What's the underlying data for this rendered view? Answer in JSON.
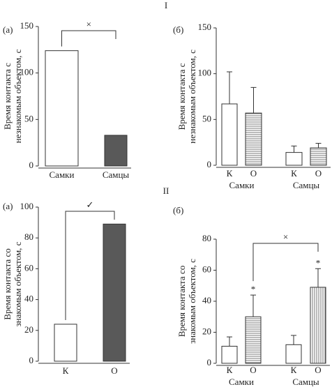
{
  "section_labels": [
    "I",
    "II"
  ],
  "chart_data": [
    {
      "type": "bar",
      "panel": "(а)",
      "ylabel": [
        "Время контакта с",
        "незнакомым объектом, с"
      ],
      "categories": [
        "Самки",
        "Самцы"
      ],
      "values": [
        124,
        33
      ],
      "colors": [
        "#ffffff",
        "#595959"
      ],
      "patterns": [
        "none",
        "none"
      ],
      "ylim": [
        0,
        150
      ],
      "yticks": [
        0,
        50,
        100,
        150
      ],
      "annotation": "×"
    },
    {
      "type": "bar",
      "panel": "(б)",
      "ylabel": [
        "Время контакта с",
        "незнакомым объектом, с"
      ],
      "categories": [
        "К",
        "О",
        "К",
        "О"
      ],
      "groups": [
        "Самки",
        "Самцы"
      ],
      "values": [
        67,
        57,
        14,
        19
      ],
      "errors": [
        35,
        28,
        7,
        5
      ],
      "colors": [
        "#ffffff",
        "#ffffff",
        "#ffffff",
        "#ffffff"
      ],
      "patterns": [
        "none",
        "hlines",
        "none",
        "hlines"
      ],
      "ylim": [
        0,
        150
      ],
      "yticks": [
        0,
        50,
        100,
        150
      ]
    },
    {
      "type": "bar",
      "panel": "(а)",
      "ylabel": [
        "Время контакта со",
        "знакомым объектом, с"
      ],
      "categories": [
        "К",
        "О"
      ],
      "values": [
        24,
        89
      ],
      "colors": [
        "#ffffff",
        "#595959"
      ],
      "patterns": [
        "none",
        "none"
      ],
      "ylim": [
        0,
        100
      ],
      "yticks": [
        0,
        20,
        40,
        60,
        80,
        100
      ],
      "annotation": "✓"
    },
    {
      "type": "bar",
      "panel": "(б)",
      "ylabel": [
        "Время контакта со",
        "знакомым объектом, с"
      ],
      "categories": [
        "К",
        "О",
        "К",
        "О"
      ],
      "groups": [
        "Самки",
        "Самцы"
      ],
      "values": [
        11,
        30,
        12,
        49
      ],
      "errors": [
        6,
        14,
        6,
        12
      ],
      "colors": [
        "#ffffff",
        "#ffffff",
        "#ffffff",
        "#ffffff"
      ],
      "patterns": [
        "none",
        "hlines",
        "none",
        "vlines"
      ],
      "markers": [
        null,
        "*",
        null,
        "*"
      ],
      "ylim": [
        0,
        80
      ],
      "yticks": [
        0,
        20,
        40,
        60,
        80
      ],
      "annotation": "×"
    }
  ]
}
